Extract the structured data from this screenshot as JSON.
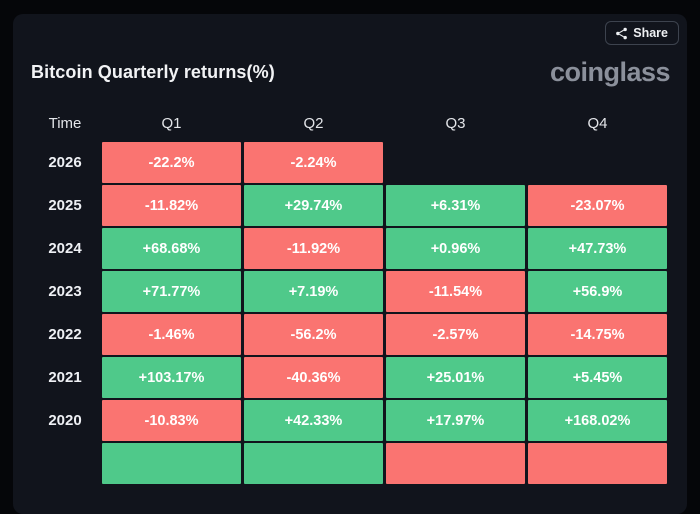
{
  "header": {
    "title": "Bitcoin Quarterly returns(%)",
    "share_label": "Share",
    "logo_text": "coinglass"
  },
  "colors": {
    "positive": "#4fc98a",
    "negative": "#fa7471",
    "card_bg": "#11141c",
    "page_bg": "#050609"
  },
  "table": {
    "columns": [
      "Time",
      "Q1",
      "Q2",
      "Q3",
      "Q4"
    ],
    "rows": [
      {
        "year": "2026",
        "cells": [
          {
            "label": "-22.2%",
            "tone": "negative"
          },
          {
            "label": "-2.24%",
            "tone": "negative"
          },
          null,
          null
        ]
      },
      {
        "year": "2025",
        "cells": [
          {
            "label": "-11.82%",
            "tone": "negative"
          },
          {
            "label": "+29.74%",
            "tone": "positive"
          },
          {
            "label": "+6.31%",
            "tone": "positive"
          },
          {
            "label": "-23.07%",
            "tone": "negative"
          }
        ]
      },
      {
        "year": "2024",
        "cells": [
          {
            "label": "+68.68%",
            "tone": "positive"
          },
          {
            "label": "-11.92%",
            "tone": "negative"
          },
          {
            "label": "+0.96%",
            "tone": "positive"
          },
          {
            "label": "+47.73%",
            "tone": "positive"
          }
        ]
      },
      {
        "year": "2023",
        "cells": [
          {
            "label": "+71.77%",
            "tone": "positive"
          },
          {
            "label": "+7.19%",
            "tone": "positive"
          },
          {
            "label": "-11.54%",
            "tone": "negative"
          },
          {
            "label": "+56.9%",
            "tone": "positive"
          }
        ]
      },
      {
        "year": "2022",
        "cells": [
          {
            "label": "-1.46%",
            "tone": "negative"
          },
          {
            "label": "-56.2%",
            "tone": "negative"
          },
          {
            "label": "-2.57%",
            "tone": "negative"
          },
          {
            "label": "-14.75%",
            "tone": "negative"
          }
        ]
      },
      {
        "year": "2021",
        "cells": [
          {
            "label": "+103.17%",
            "tone": "positive"
          },
          {
            "label": "-40.36%",
            "tone": "negative"
          },
          {
            "label": "+25.01%",
            "tone": "positive"
          },
          {
            "label": "+5.45%",
            "tone": "positive"
          }
        ]
      },
      {
        "year": "2020",
        "cells": [
          {
            "label": "-10.83%",
            "tone": "negative"
          },
          {
            "label": "+42.33%",
            "tone": "positive"
          },
          {
            "label": "+17.97%",
            "tone": "positive"
          },
          {
            "label": "+168.02%",
            "tone": "positive"
          }
        ]
      },
      {
        "year": "",
        "cells": [
          {
            "label": "",
            "tone": "positive"
          },
          {
            "label": "",
            "tone": "positive"
          },
          {
            "label": "",
            "tone": "negative"
          },
          {
            "label": "",
            "tone": "negative"
          }
        ]
      }
    ]
  },
  "chart_data": {
    "type": "heatmap",
    "title": "Bitcoin Quarterly returns(%)",
    "columns": [
      "Q1",
      "Q2",
      "Q3",
      "Q4"
    ],
    "rows": [
      "2026",
      "2025",
      "2024",
      "2023",
      "2022",
      "2021",
      "2020"
    ],
    "values": [
      [
        -22.2,
        -2.24,
        null,
        null
      ],
      [
        -11.82,
        29.74,
        6.31,
        -23.07
      ],
      [
        68.68,
        -11.92,
        0.96,
        47.73
      ],
      [
        71.77,
        7.19,
        -11.54,
        56.9
      ],
      [
        -1.46,
        -56.2,
        -2.57,
        -14.75
      ],
      [
        103.17,
        -40.36,
        25.01,
        5.45
      ],
      [
        -10.83,
        42.33,
        17.97,
        168.02
      ]
    ],
    "value_unit": "%",
    "positive_color": "#4fc98a",
    "negative_color": "#fa7471",
    "legend": "none",
    "source_watermark": "coinglass"
  }
}
